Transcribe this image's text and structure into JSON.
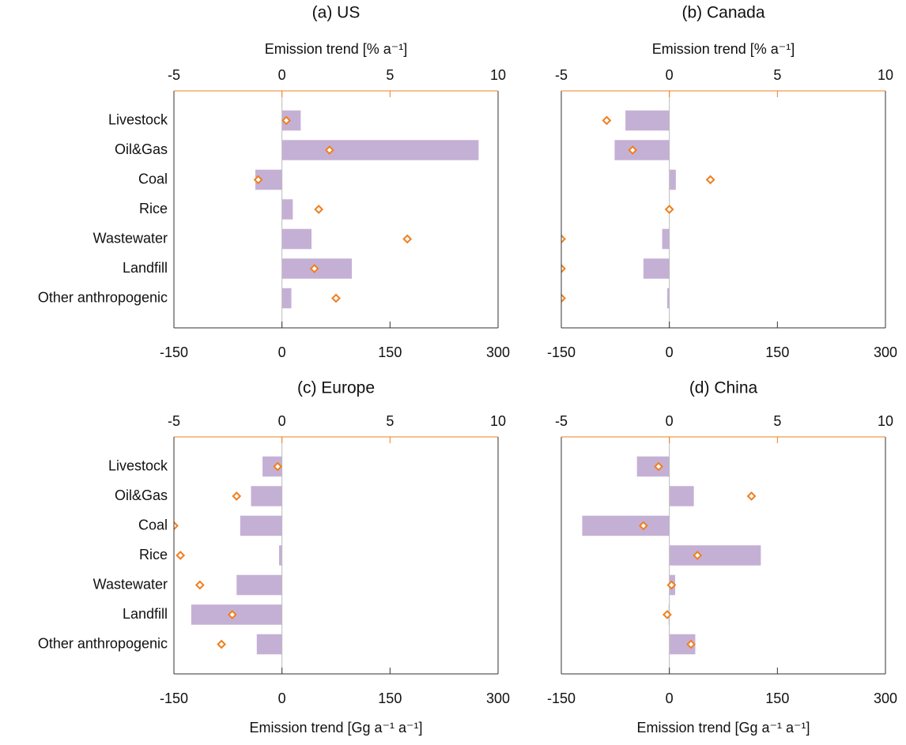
{
  "chart_data": [
    {
      "type": "bar",
      "title": "(a) US",
      "x2label": "Emission trend [% a⁻¹]",
      "categories": [
        "Livestock",
        "Oil&Gas",
        "Coal",
        "Rice",
        "Wastewater",
        "Landfill",
        "Other anthropogenic"
      ],
      "series": [
        {
          "color": "#c5b0d5",
          "values": [
            26,
            273,
            -37,
            15,
            41,
            97,
            13
          ]
        },
        {
          "color": "#f07f1e",
          "axis": "x2",
          "marker": "diamond",
          "values": [
            0.2,
            2.2,
            -1.1,
            1.7,
            5.8,
            1.5,
            2.5
          ]
        }
      ],
      "xlim": [
        -150,
        300
      ],
      "xticks": [
        -150,
        0,
        150,
        300
      ],
      "x2lim": [
        -5,
        10
      ],
      "x2ticks": [
        -5,
        0,
        5,
        10
      ]
    },
    {
      "type": "bar",
      "title": "(b) Canada",
      "x2label": "Emission trend [% a⁻¹]",
      "categories": [
        null,
        null,
        null,
        null,
        null,
        null,
        null
      ],
      "series": [
        {
          "color": "#c5b0d5",
          "values": [
            -61,
            -76,
            9,
            0,
            -10,
            -36,
            -3
          ]
        },
        {
          "color": "#f07f1e",
          "axis": "x2",
          "marker": "diamond",
          "values": [
            -2.9,
            -1.7,
            1.9,
            0,
            -5,
            -5,
            -5
          ]
        }
      ],
      "xlim": [
        -150,
        300
      ],
      "xticks": [
        -150,
        0,
        150,
        300
      ],
      "x2lim": [
        -5,
        10
      ],
      "x2ticks": [
        -5,
        0,
        5,
        10
      ]
    },
    {
      "type": "bar",
      "title": "(c) Europe",
      "xlabel": "Emission trend [Gg a⁻¹ a⁻¹]",
      "categories": [
        "Livestock",
        "Oil&Gas",
        "Coal",
        "Rice",
        "Wastewater",
        "Landfill",
        "Other anthropogenic"
      ],
      "series": [
        {
          "color": "#c5b0d5",
          "values": [
            -27,
            -43,
            -58,
            -4,
            -63,
            -126,
            -35
          ]
        },
        {
          "color": "#f07f1e",
          "axis": "x2",
          "marker": "diamond",
          "values": [
            -0.2,
            -2.1,
            -5,
            -4.7,
            -3.8,
            -2.3,
            -2.8
          ]
        }
      ],
      "xlim": [
        -150,
        300
      ],
      "xticks": [
        -150,
        0,
        150,
        300
      ],
      "x2lim": [
        -5,
        10
      ],
      "x2ticks": [
        -5,
        0,
        5,
        10
      ]
    },
    {
      "type": "bar",
      "title": "(d) China",
      "xlabel": "Emission trend [Gg a⁻¹ a⁻¹]",
      "categories": [
        null,
        null,
        null,
        null,
        null,
        null,
        null
      ],
      "series": [
        {
          "color": "#c5b0d5",
          "values": [
            -45,
            34,
            -121,
            127,
            8,
            -1,
            36
          ]
        },
        {
          "color": "#f07f1e",
          "axis": "x2",
          "marker": "diamond",
          "values": [
            -0.5,
            3.8,
            -1.2,
            1.3,
            0.1,
            -0.1,
            1.0
          ]
        }
      ],
      "xlim": [
        -150,
        300
      ],
      "xticks": [
        -150,
        0,
        150,
        300
      ],
      "x2lim": [
        -5,
        10
      ],
      "x2ticks": [
        -5,
        0,
        5,
        10
      ]
    }
  ]
}
